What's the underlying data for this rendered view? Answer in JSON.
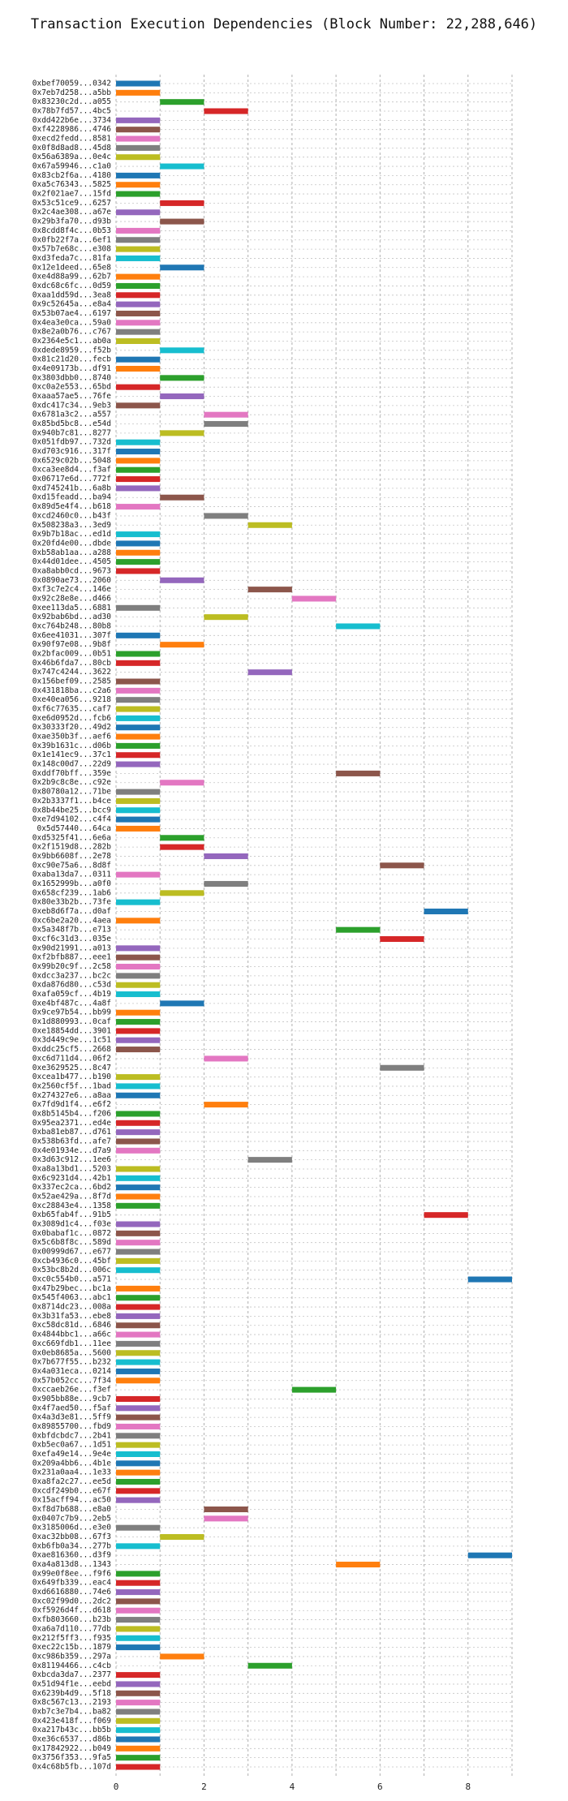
{
  "chart_data": {
    "type": "bar",
    "orientation": "horizontal",
    "title": "Transaction Execution Dependencies (Block Number: 22,288,646)",
    "xlabel": "",
    "ylabel": "",
    "xlim": [
      0,
      9
    ],
    "x_ticks": [
      0,
      2,
      4,
      6,
      8
    ],
    "grid": true,
    "colors": [
      "#1f77b4",
      "#ff7f0e",
      "#2ca02c",
      "#d62728",
      "#9467bd",
      "#8c564b",
      "#e377c2",
      "#7f7f7f",
      "#bcbd22",
      "#17becf"
    ],
    "transactions": [
      {
        "label": "0xbef70059...0342",
        "start": 0,
        "end": 1
      },
      {
        "label": "0x7eb7d258...a5bb",
        "start": 0,
        "end": 1
      },
      {
        "label": "0x83230c2d...a055",
        "start": 1,
        "end": 2
      },
      {
        "label": "0x78b7fd57...4bc5",
        "start": 2,
        "end": 3
      },
      {
        "label": "0xdd422b6e...3734",
        "start": 0,
        "end": 1
      },
      {
        "label": "0xf4228986...4746",
        "start": 0,
        "end": 1
      },
      {
        "label": "0xecd2fedd...8581",
        "start": 0,
        "end": 1
      },
      {
        "label": "0x0f8d8ad8...45d8",
        "start": 0,
        "end": 1
      },
      {
        "label": "0x56a6389a...0e4c",
        "start": 0,
        "end": 1
      },
      {
        "label": "0x67a59946...c1a0",
        "start": 1,
        "end": 2
      },
      {
        "label": "0x83cb2f6a...4180",
        "start": 0,
        "end": 1
      },
      {
        "label": "0xa5c76343...5825",
        "start": 0,
        "end": 1
      },
      {
        "label": "0x2f021ae7...15fd",
        "start": 0,
        "end": 1
      },
      {
        "label": "0x53c51ce9...6257",
        "start": 1,
        "end": 2
      },
      {
        "label": "0x2c4ae308...a67e",
        "start": 0,
        "end": 1
      },
      {
        "label": "0x29b3fa70...d93b",
        "start": 1,
        "end": 2
      },
      {
        "label": "0x8cdd8f4c...0b53",
        "start": 0,
        "end": 1
      },
      {
        "label": "0x0fb22f7a...6ef1",
        "start": 0,
        "end": 1
      },
      {
        "label": "0x57b7e68c...e308",
        "start": 0,
        "end": 1
      },
      {
        "label": "0xd3feda7c...81fa",
        "start": 0,
        "end": 1
      },
      {
        "label": "0x12e1deed...65e8",
        "start": 1,
        "end": 2
      },
      {
        "label": "0xe4d88a99...62b7",
        "start": 0,
        "end": 1
      },
      {
        "label": "0xdc68c6fc...0d59",
        "start": 0,
        "end": 1
      },
      {
        "label": "0xaa1dd59d...3ea8",
        "start": 0,
        "end": 1
      },
      {
        "label": "0x9c52645a...e8a4",
        "start": 0,
        "end": 1
      },
      {
        "label": "0x53b07ae4...6197",
        "start": 0,
        "end": 1
      },
      {
        "label": "0x4ea3e0ca...59a0",
        "start": 0,
        "end": 1
      },
      {
        "label": "0x8e2a0b76...c767",
        "start": 0,
        "end": 1
      },
      {
        "label": "0x2364e5c1...ab0a",
        "start": 0,
        "end": 1
      },
      {
        "label": "0xdede8959...f52b",
        "start": 1,
        "end": 2
      },
      {
        "label": "0x81c21d20...fecb",
        "start": 0,
        "end": 1
      },
      {
        "label": "0x4e09173b...df91",
        "start": 0,
        "end": 1
      },
      {
        "label": "0x3803dbb0...8740",
        "start": 1,
        "end": 2
      },
      {
        "label": "0xc0a2e553...65bd",
        "start": 0,
        "end": 1
      },
      {
        "label": "0xaaa57ae5...76fe",
        "start": 1,
        "end": 2
      },
      {
        "label": "0xdc417c34...9eb3",
        "start": 0,
        "end": 1
      },
      {
        "label": "0x6781a3c2...a557",
        "start": 2,
        "end": 3
      },
      {
        "label": "0x85bd5bc8...e54d",
        "start": 2,
        "end": 3
      },
      {
        "label": "0x940b7c81...8277",
        "start": 1,
        "end": 2
      },
      {
        "label": "0x051fdb97...732d",
        "start": 0,
        "end": 1
      },
      {
        "label": "0xd703c916...317f",
        "start": 0,
        "end": 1
      },
      {
        "label": "0x6529c02b...5048",
        "start": 0,
        "end": 1
      },
      {
        "label": "0xca3ee8d4...f3af",
        "start": 0,
        "end": 1
      },
      {
        "label": "0x06717e6d...772f",
        "start": 0,
        "end": 1
      },
      {
        "label": "0xd745241b...6a8b",
        "start": 0,
        "end": 1
      },
      {
        "label": "0xd15feadd...ba94",
        "start": 1,
        "end": 2
      },
      {
        "label": "0x89d5e4f4...b618",
        "start": 0,
        "end": 1
      },
      {
        "label": "0xcd2460c0...b43f",
        "start": 2,
        "end": 3
      },
      {
        "label": "0x508238a3...3ed9",
        "start": 3,
        "end": 4
      },
      {
        "label": "0x9b7b18ac...ed1d",
        "start": 0,
        "end": 1
      },
      {
        "label": "0x20fd4e00...dbde",
        "start": 0,
        "end": 1
      },
      {
        "label": "0xb58ab1aa...a288",
        "start": 0,
        "end": 1
      },
      {
        "label": "0x44d01dee...4505",
        "start": 0,
        "end": 1
      },
      {
        "label": "0xa8abb0cd...9673",
        "start": 0,
        "end": 1
      },
      {
        "label": "0x0890ae73...2060",
        "start": 1,
        "end": 2
      },
      {
        "label": "0xf3c7e2c4...146e",
        "start": 3,
        "end": 4
      },
      {
        "label": "0x92c28e8e...d466",
        "start": 4,
        "end": 5
      },
      {
        "label": "0xee113da5...6881",
        "start": 0,
        "end": 1
      },
      {
        "label": "0x92bab6bd...ad30",
        "start": 2,
        "end": 3
      },
      {
        "label": "0xc764b248...80b8",
        "start": 5,
        "end": 6
      },
      {
        "label": "0x6ee41031...307f",
        "start": 0,
        "end": 1
      },
      {
        "label": "0x90f97e08...9b8f",
        "start": 1,
        "end": 2
      },
      {
        "label": "0x2bfac009...0b51",
        "start": 0,
        "end": 1
      },
      {
        "label": "0x46b6fda7...80cb",
        "start": 0,
        "end": 1
      },
      {
        "label": "0x747c4244...3622",
        "start": 3,
        "end": 4
      },
      {
        "label": "0x156bef09...2585",
        "start": 0,
        "end": 1
      },
      {
        "label": "0x431818ba...c2a6",
        "start": 0,
        "end": 1
      },
      {
        "label": "0xe40ea056...9218",
        "start": 0,
        "end": 1
      },
      {
        "label": "0xf6c77635...caf7",
        "start": 0,
        "end": 1
      },
      {
        "label": "0xe6d0952d...fcb6",
        "start": 0,
        "end": 1
      },
      {
        "label": "0x30333f20...49d2",
        "start": 0,
        "end": 1
      },
      {
        "label": "0xae350b3f...aef6",
        "start": 0,
        "end": 1
      },
      {
        "label": "0x39b1631c...d06b",
        "start": 0,
        "end": 1
      },
      {
        "label": "0x1e141ec9...37c1",
        "start": 0,
        "end": 1
      },
      {
        "label": "0x148c00d7...22d9",
        "start": 0,
        "end": 1
      },
      {
        "label": "0xddf70bff...359e",
        "start": 5,
        "end": 6
      },
      {
        "label": "0x2b9c8c8e...c92e",
        "start": 1,
        "end": 2
      },
      {
        "label": "0x80780a12...71be",
        "start": 0,
        "end": 1
      },
      {
        "label": "0x2b3337f1...b4ce",
        "start": 0,
        "end": 1
      },
      {
        "label": "0x8b44be25...bcc9",
        "start": 0,
        "end": 1
      },
      {
        "label": "0xe7d94102...c4f4",
        "start": 0,
        "end": 1
      },
      {
        "label": "0x5d57440...64ca",
        "start": 0,
        "end": 1
      },
      {
        "label": "0xd5325f41...6e6a",
        "start": 1,
        "end": 2
      },
      {
        "label": "0x2f1519d8...282b",
        "start": 1,
        "end": 2
      },
      {
        "label": "0x9bb6608f...2e78",
        "start": 2,
        "end": 3
      },
      {
        "label": "0xc90e75a6...8d8f",
        "start": 6,
        "end": 7
      },
      {
        "label": "0xaba13da7...0311",
        "start": 0,
        "end": 1
      },
      {
        "label": "0x1652999b...a0f0",
        "start": 2,
        "end": 3
      },
      {
        "label": "0x658cf239...1ab6",
        "start": 1,
        "end": 2
      },
      {
        "label": "0x80e33b2b...73fe",
        "start": 0,
        "end": 1
      },
      {
        "label": "0xeb8d6f7a...d0af",
        "start": 7,
        "end": 8
      },
      {
        "label": "0xc6be2a20...4aea",
        "start": 0,
        "end": 1
      },
      {
        "label": "0x5a348f7b...e713",
        "start": 5,
        "end": 6
      },
      {
        "label": "0xcf6c31d3...035e",
        "start": 6,
        "end": 7
      },
      {
        "label": "0x90d21991...a013",
        "start": 0,
        "end": 1
      },
      {
        "label": "0xf2bfb887...eee1",
        "start": 0,
        "end": 1
      },
      {
        "label": "0x99b20c9f...2c58",
        "start": 0,
        "end": 1
      },
      {
        "label": "0xdcc3a237...bc2c",
        "start": 0,
        "end": 1
      },
      {
        "label": "0xda876d80...c53d",
        "start": 0,
        "end": 1
      },
      {
        "label": "0xafa059cf...4b19",
        "start": 0,
        "end": 1
      },
      {
        "label": "0xe4bf487c...4a8f",
        "start": 1,
        "end": 2
      },
      {
        "label": "0x9ce97b54...bb99",
        "start": 0,
        "end": 1
      },
      {
        "label": "0x1d880993...0caf",
        "start": 0,
        "end": 1
      },
      {
        "label": "0xe18854dd...3901",
        "start": 0,
        "end": 1
      },
      {
        "label": "0x3d449c9e...1c51",
        "start": 0,
        "end": 1
      },
      {
        "label": "0xddc25cf5...2668",
        "start": 0,
        "end": 1
      },
      {
        "label": "0xc6d711d4...06f2",
        "start": 2,
        "end": 3
      },
      {
        "label": "0xe3629525...8c47",
        "start": 6,
        "end": 7
      },
      {
        "label": "0xcea1b477...b190",
        "start": 0,
        "end": 1
      },
      {
        "label": "0x2560cf5f...1bad",
        "start": 0,
        "end": 1
      },
      {
        "label": "0x274327e6...a8aa",
        "start": 0,
        "end": 1
      },
      {
        "label": "0x7fd9d1f4...e6f2",
        "start": 2,
        "end": 3
      },
      {
        "label": "0x8b5145b4...f206",
        "start": 0,
        "end": 1
      },
      {
        "label": "0x95ea2371...ed4e",
        "start": 0,
        "end": 1
      },
      {
        "label": "0xba81eb87...d761",
        "start": 0,
        "end": 1
      },
      {
        "label": "0x538b63fd...afe7",
        "start": 0,
        "end": 1
      },
      {
        "label": "0x4e01934e...d7a9",
        "start": 0,
        "end": 1
      },
      {
        "label": "0x3d63c912...1ee6",
        "start": 3,
        "end": 4
      },
      {
        "label": "0xa8a13bd1...5203",
        "start": 0,
        "end": 1
      },
      {
        "label": "0x6c9231d4...42b1",
        "start": 0,
        "end": 1
      },
      {
        "label": "0x337ec2ca...6bd2",
        "start": 0,
        "end": 1
      },
      {
        "label": "0x52ae429a...8f7d",
        "start": 0,
        "end": 1
      },
      {
        "label": "0xc28843e4...1358",
        "start": 0,
        "end": 1
      },
      {
        "label": "0xb65fab4f...91b5",
        "start": 7,
        "end": 8
      },
      {
        "label": "0x3089d1c4...f03e",
        "start": 0,
        "end": 1
      },
      {
        "label": "0x0babaf1c...0872",
        "start": 0,
        "end": 1
      },
      {
        "label": "0x5c6b8f8c...589d",
        "start": 0,
        "end": 1
      },
      {
        "label": "0x00999d67...e677",
        "start": 0,
        "end": 1
      },
      {
        "label": "0xcb4936c0...45bf",
        "start": 0,
        "end": 1
      },
      {
        "label": "0x53bc8b2d...006c",
        "start": 0,
        "end": 1
      },
      {
        "label": "0xc0c554b0...a571",
        "start": 8,
        "end": 9
      },
      {
        "label": "0x47b29bec...bc1a",
        "start": 0,
        "end": 1
      },
      {
        "label": "0x545f4063...abc1",
        "start": 0,
        "end": 1
      },
      {
        "label": "0x8714dc23...008a",
        "start": 0,
        "end": 1
      },
      {
        "label": "0x3b31fa53...ebe8",
        "start": 0,
        "end": 1
      },
      {
        "label": "0xc58dc81d...6846",
        "start": 0,
        "end": 1
      },
      {
        "label": "0x4844bbc1...a66c",
        "start": 0,
        "end": 1
      },
      {
        "label": "0xc669fdb1...11ee",
        "start": 0,
        "end": 1
      },
      {
        "label": "0x0eb8685a...5600",
        "start": 0,
        "end": 1
      },
      {
        "label": "0x7b677f55...b232",
        "start": 0,
        "end": 1
      },
      {
        "label": "0x4a031eca...0214",
        "start": 0,
        "end": 1
      },
      {
        "label": "0x57b052cc...7f34",
        "start": 0,
        "end": 1
      },
      {
        "label": "0xccaeb26e...f3ef",
        "start": 4,
        "end": 5
      },
      {
        "label": "0x905bb88e...9cb7",
        "start": 0,
        "end": 1
      },
      {
        "label": "0x4f7aed50...f5af",
        "start": 0,
        "end": 1
      },
      {
        "label": "0x4a3d3e81...5ff9",
        "start": 0,
        "end": 1
      },
      {
        "label": "0x89855700...fbd9",
        "start": 0,
        "end": 1
      },
      {
        "label": "0xbfdcbdc7...2b41",
        "start": 0,
        "end": 1
      },
      {
        "label": "0xb5ec0a67...1d51",
        "start": 0,
        "end": 1
      },
      {
        "label": "0xefa49e14...9e4e",
        "start": 0,
        "end": 1
      },
      {
        "label": "0x209a4bb6...4b1e",
        "start": 0,
        "end": 1
      },
      {
        "label": "0x231a0aa4...1e33",
        "start": 0,
        "end": 1
      },
      {
        "label": "0xa8fa2c27...ee5d",
        "start": 0,
        "end": 1
      },
      {
        "label": "0xcdf249b0...e67f",
        "start": 0,
        "end": 1
      },
      {
        "label": "0x15acff94...ac50",
        "start": 0,
        "end": 1
      },
      {
        "label": "0xf8d7b688...e8a0",
        "start": 2,
        "end": 3
      },
      {
        "label": "0x0407c7b9...2eb5",
        "start": 2,
        "end": 3
      },
      {
        "label": "0x3185006d...e3e0",
        "start": 0,
        "end": 1
      },
      {
        "label": "0xac32bb08...67f3",
        "start": 1,
        "end": 2
      },
      {
        "label": "0xb6fb0a34...277b",
        "start": 0,
        "end": 1
      },
      {
        "label": "0xae816360...d3f9",
        "start": 8,
        "end": 9
      },
      {
        "label": "0xa4a813d8...1343",
        "start": 5,
        "end": 6
      },
      {
        "label": "0x99e0f8ee...f9f6",
        "start": 0,
        "end": 1
      },
      {
        "label": "0x649fb339...eac4",
        "start": 0,
        "end": 1
      },
      {
        "label": "0xd6616880...74e6",
        "start": 0,
        "end": 1
      },
      {
        "label": "0xc02f99d0...2dc2",
        "start": 0,
        "end": 1
      },
      {
        "label": "0xf5926d4f...d618",
        "start": 0,
        "end": 1
      },
      {
        "label": "0xfb803660...b23b",
        "start": 0,
        "end": 1
      },
      {
        "label": "0xa6a7d110...77db",
        "start": 0,
        "end": 1
      },
      {
        "label": "0x212f5ff3...f935",
        "start": 0,
        "end": 1
      },
      {
        "label": "0xec22c15b...1879",
        "start": 0,
        "end": 1
      },
      {
        "label": "0xc986b359...297a",
        "start": 1,
        "end": 2
      },
      {
        "label": "0x81194466...c4cb",
        "start": 3,
        "end": 4
      },
      {
        "label": "0xbcda3da7...2377",
        "start": 0,
        "end": 1
      },
      {
        "label": "0x51d94f1e...eebd",
        "start": 0,
        "end": 1
      },
      {
        "label": "0x6239b4d9...5f18",
        "start": 0,
        "end": 1
      },
      {
        "label": "0x8c567c13...2193",
        "start": 0,
        "end": 1
      },
      {
        "label": "0xb7c3e7b4...ba82",
        "start": 0,
        "end": 1
      },
      {
        "label": "0x423e418f...f069",
        "start": 0,
        "end": 1
      },
      {
        "label": "0xa217b43c...bb5b",
        "start": 0,
        "end": 1
      },
      {
        "label": "0xe36c6537...d86b",
        "start": 0,
        "end": 1
      },
      {
        "label": "0x17842922...b049",
        "start": 0,
        "end": 1
      },
      {
        "label": "0x3756f353...9fa5",
        "start": 0,
        "end": 1
      },
      {
        "label": "0x4c68b5fb...107d",
        "start": 0,
        "end": 1
      }
    ]
  }
}
